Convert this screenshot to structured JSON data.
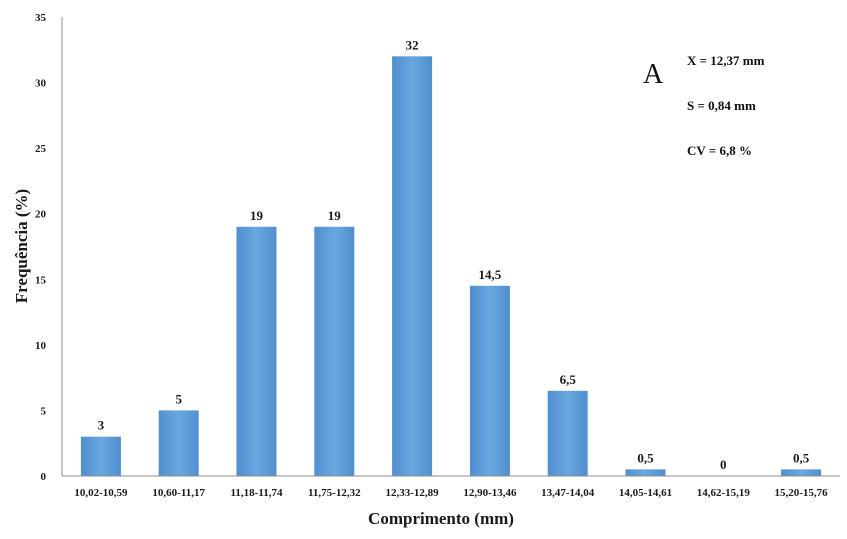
{
  "chart_data": {
    "type": "bar",
    "categories": [
      "10,02-10,59",
      "10,60-11,17",
      "11,18-11,74",
      "11,75-12,32",
      "12,33-12,89",
      "12,90-13,46",
      "13,47-14,04",
      "14,05-14,61",
      "14,62-15,19",
      "15,20-15,76"
    ],
    "values": [
      3,
      5,
      19,
      19,
      32,
      14.5,
      6.5,
      0.5,
      0,
      0.5
    ],
    "data_labels": [
      "3",
      "5",
      "19",
      "19",
      "32",
      "14,5",
      "6,5",
      "0,5",
      "0",
      "0,5"
    ],
    "xlabel": "Comprimento (mm)",
    "ylabel": "Frequência (%)",
    "ylim": [
      0,
      35
    ],
    "yticks": [
      "0",
      "5",
      "10",
      "15",
      "20",
      "25",
      "30",
      "35"
    ],
    "grid": false,
    "bar_color": "#5b9bd5",
    "panel_label": "A",
    "annotations": [
      "X = 12,37 mm",
      "S = 0,84 mm",
      "CV = 6,8 %"
    ]
  }
}
